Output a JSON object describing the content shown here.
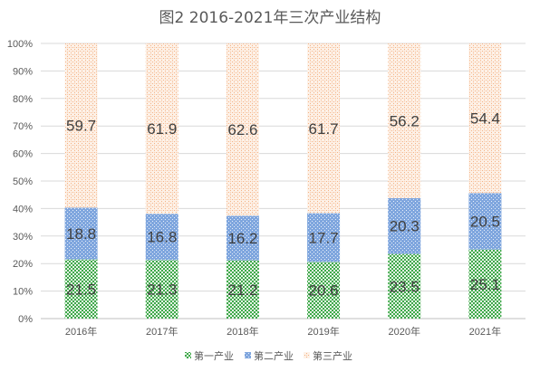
{
  "chart_data": {
    "type": "bar",
    "stacked": true,
    "title": "图2  2016-2021年三次产业结构",
    "xlabel": "",
    "ylabel": "",
    "ylim": [
      0,
      100
    ],
    "yticks": [
      "0%",
      "10%",
      "20%",
      "30%",
      "40%",
      "50%",
      "60%",
      "70%",
      "80%",
      "90%",
      "100%"
    ],
    "grid": true,
    "legend_position": "bottom",
    "categories": [
      "2016年",
      "2017年",
      "2018年",
      "2019年",
      "2020年",
      "2021年"
    ],
    "series": [
      {
        "name": "第一产业",
        "values": [
          21.5,
          21.3,
          21.2,
          20.6,
          23.5,
          25.1
        ],
        "color": "#3fa84a"
      },
      {
        "name": "第二产业",
        "values": [
          18.8,
          16.8,
          16.2,
          17.7,
          20.3,
          20.5
        ],
        "color": "#7fa6de"
      },
      {
        "name": "第三产业",
        "values": [
          59.7,
          61.9,
          62.6,
          61.7,
          56.2,
          54.4
        ],
        "color": "#f4b183"
      }
    ]
  }
}
